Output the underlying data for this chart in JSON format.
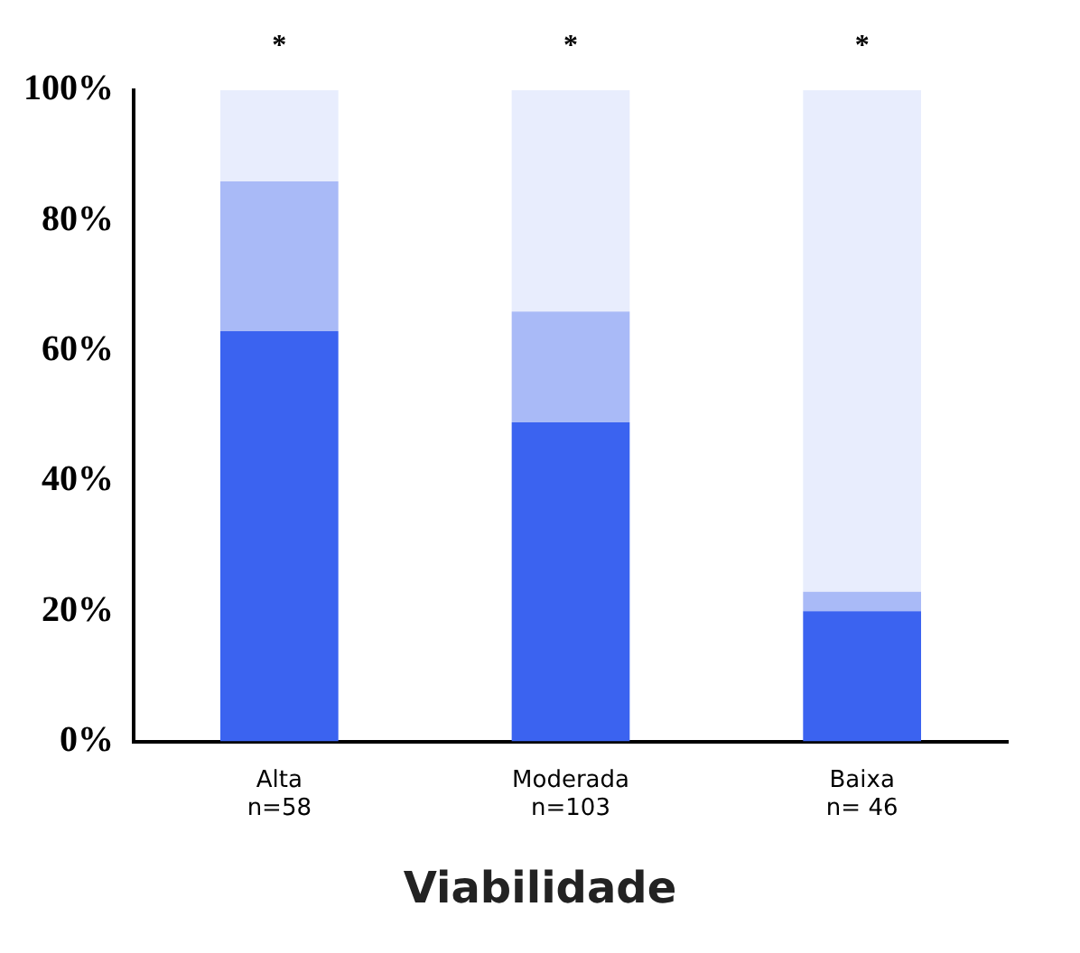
{
  "chart_data": {
    "type": "bar",
    "stacked": true,
    "xlabel": "Viabilidade",
    "categories": [
      "Alta\nn=58",
      "Moderada\nn=103",
      "Baixa\nn= 46"
    ],
    "series": [
      {
        "color": "#3b63f0",
        "values": [
          63,
          49,
          20
        ]
      },
      {
        "color": "#a9baf7",
        "values": [
          23,
          17,
          3
        ]
      },
      {
        "color": "#e8edfd",
        "values": [
          14,
          34,
          77
        ]
      }
    ],
    "ylim": [
      0,
      100
    ],
    "yticks": [
      {
        "value": 0,
        "label": "0%"
      },
      {
        "value": 20,
        "label": "20%"
      },
      {
        "value": 40,
        "label": "40%"
      },
      {
        "value": 60,
        "label": "60%"
      },
      {
        "value": 80,
        "label": "80%"
      },
      {
        "value": 100,
        "label": "100%"
      }
    ],
    "annotations": [
      {
        "text": "*",
        "x": "Alta\nn=58",
        "y": 100
      },
      {
        "text": "*",
        "x": "Moderada\nn=103",
        "y": 100
      },
      {
        "text": "*",
        "x": "Baixa\nn= 46",
        "y": 100
      }
    ],
    "grid": false,
    "legend": false
  }
}
